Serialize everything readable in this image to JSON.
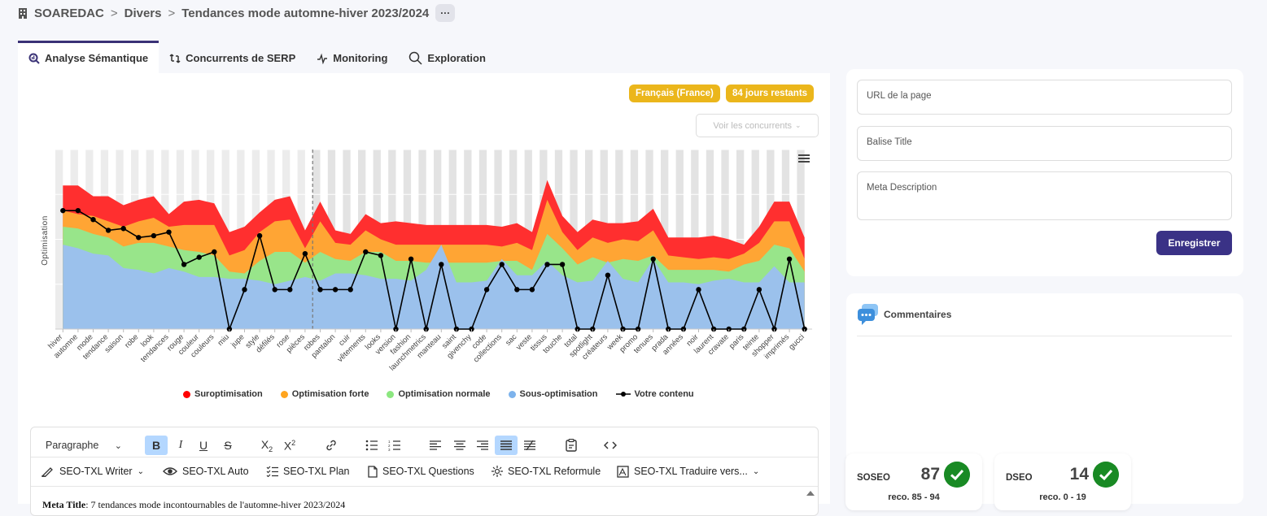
{
  "breadcrumb": {
    "items": [
      "SOAREDAC",
      "Divers",
      "Tendances mode automne-hiver 2023/2024"
    ],
    "separator": ">",
    "more_label": "···"
  },
  "tabs": [
    {
      "label": "Analyse Sémantique",
      "icon": "search-chart-icon",
      "active": true
    },
    {
      "label": "Concurrents de SERP",
      "icon": "compare-icon",
      "active": false
    },
    {
      "label": "Monitoring",
      "icon": "pulse-icon",
      "active": false
    },
    {
      "label": "Exploration",
      "icon": "magnifier-icon",
      "active": false
    }
  ],
  "badges": {
    "language": "Français (France)",
    "days": "84 jours restants"
  },
  "competitors_dropdown": "Voir les concurrents",
  "chart_data": {
    "type": "area",
    "ylabel": "Optimisation",
    "categories": [
      "hiver",
      "automne",
      "mode",
      "tendance",
      "saison",
      "robe",
      "look",
      "tendances",
      "rouge",
      "couleur",
      "couleurs",
      "miu",
      "jupe",
      "style",
      "défilés",
      "rose",
      "pièces",
      "robes",
      "pantalon",
      "cuir",
      "vêtements",
      "looks",
      "version",
      "fashion",
      "launchmetrics",
      "manteau",
      "saint",
      "givenchy",
      "code",
      "collections",
      "sac",
      "veste",
      "tissus",
      "touche",
      "total",
      "spotlight",
      "créateurs",
      "week",
      "promo",
      "tenues",
      "prada",
      "années",
      "noir",
      "laurent",
      "cravate",
      "paris",
      "teinte",
      "shopper",
      "imprimés",
      "gucci"
    ],
    "ylim": [
      0,
      100
    ],
    "dashed_marker_index": 16.5,
    "series": [
      {
        "name": "Suroptimisation",
        "color": "#ff2f2f",
        "values": [
          80,
          80,
          74,
          74,
          69,
          72,
          74,
          64,
          71,
          72,
          70,
          54,
          57,
          65,
          72,
          74,
          55,
          71,
          55,
          53,
          64,
          59,
          60,
          59,
          58,
          58,
          58,
          58,
          58,
          57,
          59,
          54,
          83,
          63,
          54,
          61,
          59,
          59,
          60,
          67,
          51,
          51,
          51,
          52,
          50,
          47,
          57,
          71,
          71,
          51
        ]
      },
      {
        "name": "Optimisation forte",
        "color": "#ffa534",
        "values": [
          66,
          64,
          63,
          60,
          57,
          60,
          62,
          57,
          58,
          58,
          58,
          41,
          44,
          54,
          60,
          61,
          45,
          60,
          48,
          47,
          55,
          50,
          47,
          47,
          47,
          47,
          47,
          47,
          47,
          46,
          48,
          44,
          72,
          54,
          44,
          51,
          48,
          50,
          49,
          55,
          41,
          40,
          39,
          40,
          39,
          42,
          48,
          60,
          60,
          39
        ]
      },
      {
        "name": "Optimisation normale",
        "color": "#98e58a",
        "values": [
          57,
          56,
          53,
          51,
          46,
          48,
          48,
          46,
          44,
          43,
          41,
          32,
          31,
          38,
          43,
          43,
          37,
          43,
          39,
          38,
          43,
          43,
          38,
          38,
          37,
          37,
          37,
          37,
          37,
          38,
          38,
          33,
          53,
          45,
          36,
          40,
          37,
          39,
          38,
          41,
          33,
          33,
          33,
          33,
          32,
          36,
          38,
          47,
          45,
          32
        ]
      },
      {
        "name": "Sous-optimisation",
        "color": "#9bc1ec",
        "values": [
          47,
          45,
          42,
          41,
          34,
          33,
          31,
          34,
          32,
          29,
          29,
          28,
          28,
          27,
          25,
          27,
          29,
          27,
          31,
          31,
          30,
          28,
          28,
          27,
          33,
          47,
          26,
          26,
          27,
          39,
          30,
          30,
          38,
          30,
          26,
          27,
          38,
          28,
          26,
          39,
          26,
          26,
          25,
          27,
          28,
          26,
          26,
          35,
          26,
          26
        ]
      },
      {
        "name": "Votre contenu",
        "color": "#000000",
        "values": [
          66,
          66,
          61,
          55,
          56,
          51,
          52,
          54,
          36,
          40,
          43,
          0,
          22,
          52,
          22,
          22,
          42,
          22,
          22,
          22,
          43,
          41,
          0,
          39,
          0,
          36,
          0,
          0,
          22,
          36,
          22,
          22,
          36,
          36,
          0,
          0,
          30,
          0,
          0,
          39,
          0,
          0,
          22,
          0,
          0,
          0,
          22,
          0,
          39,
          0
        ]
      }
    ],
    "legend": [
      "Suroptimisation",
      "Optimisation forte",
      "Optimisation normale",
      "Sous-optimisation",
      "Votre contenu"
    ],
    "legend_position": "bottom"
  },
  "editor": {
    "block_format": "Paragraphe",
    "tools": [
      {
        "label": "SEO-TXL Writer",
        "icon": "pen-icon"
      },
      {
        "label": "SEO-TXL Auto",
        "icon": "eye-icon"
      },
      {
        "label": "SEO-TXL Plan",
        "icon": "checklist-icon"
      },
      {
        "label": "SEO-TXL Questions",
        "icon": "document-icon"
      },
      {
        "label": "SEO-TXL Reformule",
        "icon": "sparkle-icon"
      },
      {
        "label": "SEO-TXL Traduire vers...",
        "icon": "translate-icon"
      }
    ],
    "content_title_label": "Meta Title",
    "content_preview": ": 7 tendances mode incontournables de l'automne-hiver 2023/2024"
  },
  "seo_form": {
    "url_label": "URL de la page",
    "title_label": "Balise Title",
    "meta_label": "Meta Description",
    "save_label": "Enregistrer"
  },
  "comments": {
    "title": "Commentaires"
  },
  "scores": [
    {
      "name": "SOSEO",
      "value": "87",
      "reco": "reco. 85 - 94"
    },
    {
      "name": "DSEO",
      "value": "14",
      "reco": "reco. 0 - 19"
    }
  ]
}
